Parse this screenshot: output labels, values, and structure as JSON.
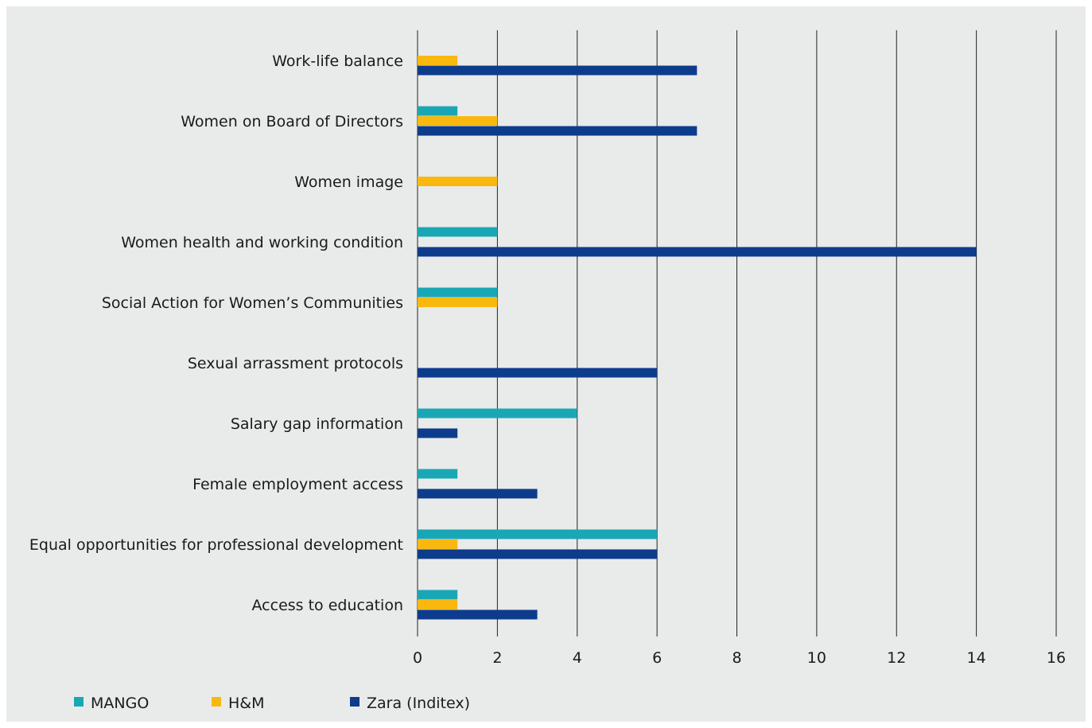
{
  "chart_data": {
    "type": "bar",
    "orientation": "horizontal",
    "categories": [
      "Work-life balance",
      "Women on Board of Directors",
      "Women image",
      "Women health and working condition",
      "Social Action for Women’s Communities",
      "Sexual arrassment protocols",
      "Salary gap information",
      "Female employment access",
      "Equal opportunities for professional development",
      "Access to education"
    ],
    "series": [
      {
        "name": "MANGO",
        "color": "#1aa7b5",
        "values": [
          0,
          1,
          0,
          2,
          2,
          0,
          4,
          1,
          6,
          1
        ]
      },
      {
        "name": "H&M",
        "color": "#f9b80f",
        "values": [
          1,
          2,
          2,
          0,
          2,
          0,
          0,
          0,
          1,
          1
        ]
      },
      {
        "name": "Zara (Inditex)",
        "color": "#0e3c8c",
        "values": [
          7,
          7,
          0,
          14,
          0,
          6,
          1,
          3,
          6,
          3
        ]
      }
    ],
    "xlim": [
      0,
      16
    ],
    "xticks": [
      0,
      2,
      4,
      6,
      8,
      10,
      12,
      14,
      16
    ],
    "grid": "vertical",
    "legend": "bottom-left"
  }
}
